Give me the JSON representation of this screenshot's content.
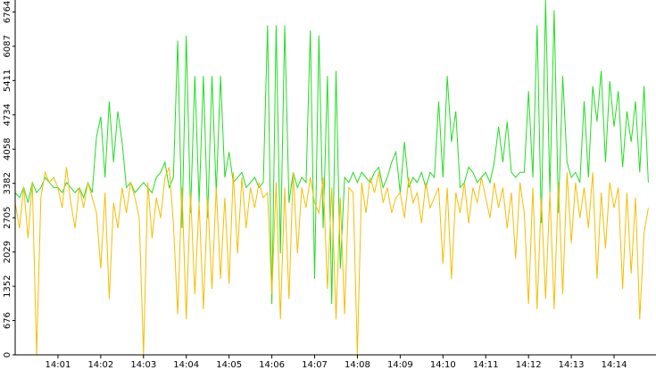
{
  "chart_data": {
    "type": "line",
    "x": [
      0,
      0.1,
      0.2,
      0.3,
      0.4,
      0.5,
      0.6,
      0.7,
      0.8,
      0.9,
      1,
      1.1,
      1.2,
      1.3,
      1.4,
      1.5,
      1.6,
      1.7,
      1.8,
      1.9,
      2,
      2.1,
      2.2,
      2.3,
      2.4,
      2.5,
      2.6,
      2.7,
      2.8,
      2.9,
      3,
      3.1,
      3.2,
      3.3,
      3.4,
      3.5,
      3.6,
      3.7,
      3.8,
      3.9,
      4,
      4.1,
      4.2,
      4.3,
      4.4,
      4.5,
      4.6,
      4.7,
      4.8,
      4.9,
      5,
      5.1,
      5.2,
      5.3,
      5.4,
      5.5,
      5.6,
      5.7,
      5.8,
      5.9,
      6,
      6.1,
      6.2,
      6.3,
      6.4,
      6.5,
      6.6,
      6.7,
      6.8,
      6.9,
      7,
      7.1,
      7.2,
      7.3,
      7.4,
      7.5,
      7.6,
      7.7,
      7.8,
      7.9,
      8,
      8.1,
      8.2,
      8.3,
      8.4,
      8.5,
      8.6,
      8.7,
      8.8,
      8.9,
      9,
      9.1,
      9.2,
      9.3,
      9.4,
      9.5,
      9.6,
      9.7,
      9.8,
      9.9,
      10,
      10.1,
      10.2,
      10.3,
      10.4,
      10.5,
      10.6,
      10.7,
      10.8,
      10.9,
      11,
      11.1,
      11.2,
      11.3,
      11.4,
      11.5,
      11.6,
      11.7,
      11.8,
      11.9,
      12,
      12.1,
      12.2,
      12.3,
      12.4,
      12.5,
      12.6,
      12.7,
      12.8,
      12.9,
      13,
      13.1,
      13.2,
      13.3,
      13.4,
      13.5,
      13.6,
      13.7,
      13.8,
      13.9,
      14,
      14.1,
      14.2,
      14.3,
      14.4,
      14.5,
      14.6,
      14.7,
      14.8
    ],
    "series": [
      {
        "color": "#22dd22",
        "values": [
          3200,
          3100,
          3300,
          3000,
          3400,
          3200,
          3300,
          3500,
          3400,
          3300,
          3300,
          3200,
          3400,
          3300,
          3200,
          3300,
          3100,
          3400,
          3200,
          4300,
          4700,
          3500,
          5000,
          3800,
          4800,
          4200,
          3300,
          3400,
          3200,
          3300,
          3400,
          3300,
          3200,
          3500,
          3600,
          3800,
          3300,
          3500,
          6200,
          2500,
          6300,
          2800,
          5500,
          3000,
          5500,
          2700,
          5500,
          3200,
          5500,
          3500,
          4000,
          3400,
          3500,
          3600,
          3300,
          3400,
          3500,
          3300,
          3400,
          6500,
          1000,
          6500,
          2000,
          6500,
          3000,
          3600,
          3300,
          3500,
          3400,
          6400,
          1500,
          6300,
          2500,
          5500,
          1000,
          5600,
          1700,
          3500,
          3400,
          3600,
          3400,
          3600,
          3500,
          3400,
          3600,
          3700,
          3300,
          3500,
          3800,
          4000,
          3200,
          4200,
          3300,
          3500,
          3400,
          3600,
          3300,
          3600,
          3500,
          5000,
          3500,
          5500,
          4200,
          4800,
          3300,
          3400,
          3700,
          3600,
          3400,
          3500,
          3600,
          3400,
          3800,
          4500,
          3800,
          4600,
          3600,
          3500,
          3600,
          3600,
          5200,
          3500,
          6500,
          2600,
          7000,
          3200,
          6800,
          2800,
          5500,
          3800,
          3500,
          3600,
          3400,
          5000,
          3500,
          5300,
          4600,
          5600,
          3800,
          5400,
          4500,
          5200,
          3700,
          4800,
          4200,
          5000,
          3600,
          5300,
          3400
        ]
      },
      {
        "color": "#f5be00",
        "values": [
          3000,
          2500,
          3300,
          2300,
          3400,
          0,
          3100,
          3600,
          3400,
          3500,
          3300,
          2900,
          3700,
          3000,
          2500,
          3300,
          2900,
          3400,
          3100,
          2800,
          1700,
          3200,
          1100,
          3000,
          2500,
          3300,
          2800,
          3400,
          3100,
          2700,
          0,
          3400,
          2300,
          3100,
          2700,
          3500,
          3700,
          2600,
          800,
          3300,
          700,
          3200,
          1200,
          3000,
          900,
          3100,
          1300,
          3300,
          1500,
          3100,
          1400,
          3600,
          2000,
          3500,
          2500,
          3300,
          2900,
          3400,
          3100,
          3200,
          1200,
          3400,
          700,
          3300,
          1100,
          3600,
          2000,
          3300,
          2900,
          3500,
          3000,
          2800,
          3500,
          1300,
          3300,
          700,
          3100,
          800,
          3300,
          3200,
          0,
          3400,
          2800,
          3500,
          3200,
          3600,
          3000,
          3300,
          2800,
          3100,
          3200,
          2700,
          3500,
          3000,
          3200,
          2600,
          3400,
          2900,
          3100,
          3300,
          1800,
          3300,
          1500,
          3200,
          2800,
          3400,
          2600,
          3300,
          3000,
          3500,
          3100,
          2700,
          3400,
          2900,
          3300,
          2500,
          3200,
          1900,
          3400,
          2800,
          1000,
          3300,
          900,
          3100,
          1100,
          3200,
          900,
          3400,
          1200,
          3600,
          2200,
          3400,
          2700,
          3300,
          2500,
          3600,
          1500,
          3200,
          2100,
          3400,
          2900,
          3300,
          1300,
          3200,
          1600,
          3100,
          700,
          2400,
          2900
        ]
      }
    ],
    "xlim": [
      0,
      14.98
    ],
    "xticks": [
      {
        "value": 1,
        "label": "14:01"
      },
      {
        "value": 2,
        "label": "14:02"
      },
      {
        "value": 3,
        "label": "14:03"
      },
      {
        "value": 4,
        "label": "14:04"
      },
      {
        "value": 5,
        "label": "14:05"
      },
      {
        "value": 6,
        "label": "14:06"
      },
      {
        "value": 7,
        "label": "14:07"
      },
      {
        "value": 8,
        "label": "14:08"
      },
      {
        "value": 9,
        "label": "14:09"
      },
      {
        "value": 10,
        "label": "14:10"
      },
      {
        "value": 11,
        "label": "14:11"
      },
      {
        "value": 12,
        "label": "14:12"
      },
      {
        "value": 13,
        "label": "14:13"
      },
      {
        "value": 14,
        "label": "14:14"
      }
    ],
    "ylim": [
      0,
      7000
    ],
    "yticks": [
      0,
      676,
      1352,
      2029,
      2705,
      3382,
      4058,
      4734,
      5411,
      6087,
      6764
    ]
  }
}
